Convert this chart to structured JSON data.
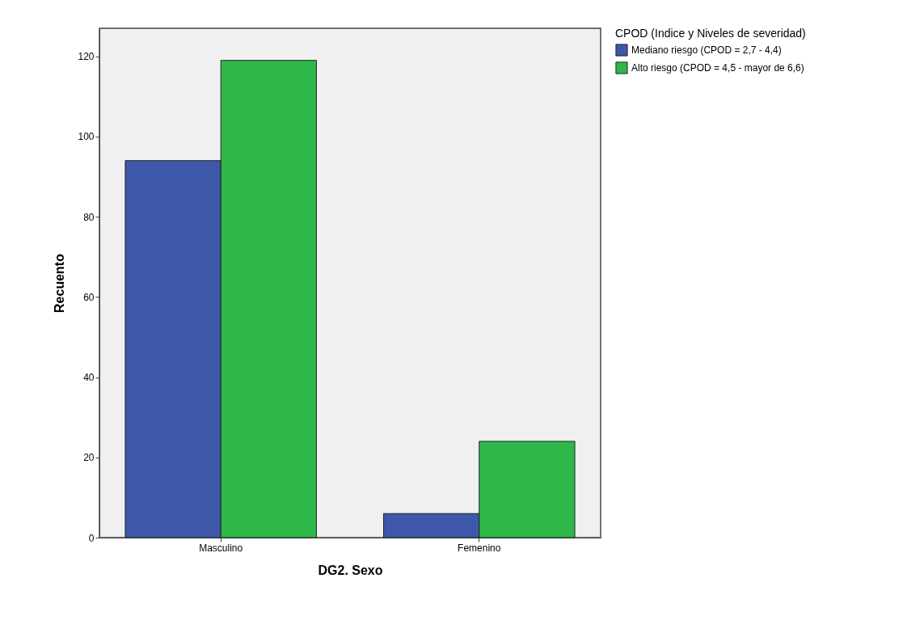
{
  "chart_data": {
    "type": "bar",
    "xlabel": "DG2. Sexo",
    "ylabel": "Recuento",
    "legend_title": "CPOD (Indice y Niveles de severidad)",
    "categories": [
      "Masculino",
      "Femenino"
    ],
    "series": [
      {
        "name": "Mediano riesgo (CPOD = 2,7 - 4,4)",
        "color": "#3d58a8",
        "values": [
          94,
          6
        ]
      },
      {
        "name": "Alto riesgo (CPOD = 4,5 - mayor de 6,6)",
        "color": "#2eb84a",
        "values": [
          119,
          24
        ]
      }
    ],
    "ylim": [
      0,
      127
    ],
    "yticks": [
      0,
      20,
      40,
      60,
      80,
      100,
      120
    ],
    "grid": false,
    "legend": "top right"
  }
}
